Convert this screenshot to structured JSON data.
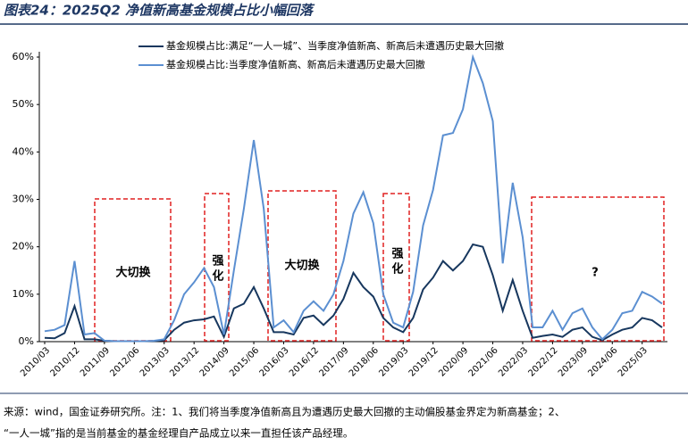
{
  "chart_data": {
    "type": "line",
    "title": "图表24：2025Q2 净值新高基金规模占比小幅回落",
    "categories": [
      "2010/03",
      null,
      null,
      "2010/12",
      null,
      null,
      "2011/09",
      null,
      null,
      "2012/06",
      null,
      null,
      "2013/03",
      null,
      null,
      "2013/12",
      null,
      null,
      "2014/09",
      null,
      null,
      "2015/06",
      null,
      null,
      "2016/03",
      null,
      null,
      "2016/12",
      null,
      null,
      "2017/09",
      null,
      null,
      "2018/06",
      null,
      null,
      "2019/03",
      null,
      null,
      "2019/12",
      null,
      null,
      "2020/09",
      null,
      null,
      "2021/06",
      null,
      null,
      "2022/03",
      null,
      null,
      "2022/12",
      null,
      null,
      "2023/09",
      null,
      null,
      "2024/06",
      null,
      null,
      "2025/03",
      null,
      null
    ],
    "series": [
      {
        "name": "基金规模占比:满足“一人一城”、当季度净值新高、新高后未遭遇历史最大回撤",
        "color": "#17375e",
        "values": [
          0.8,
          0.7,
          1.8,
          7.5,
          0.5,
          0.5,
          0.2,
          0.1,
          0.1,
          0.1,
          0.1,
          0.1,
          0.3,
          2.5,
          4,
          4.5,
          4.7,
          5.3,
          1,
          7,
          8,
          11.5,
          7,
          2,
          2,
          1.5,
          5,
          5.5,
          3.5,
          5.5,
          9,
          14.5,
          11.5,
          9.5,
          5,
          3,
          2,
          5,
          11,
          13.5,
          17,
          15,
          17,
          20.5,
          20,
          14,
          6.5,
          13,
          6.5,
          0.8,
          1.2,
          1.5,
          1,
          2.5,
          3,
          1,
          0.3,
          1.5,
          2.5,
          3,
          5,
          4.5,
          3
        ]
      },
      {
        "name": "基金规模占比:当季度净值新高、新高后未遭遇历史最大回撤",
        "color": "#5b8fd1",
        "values": [
          2.2,
          2.5,
          3.5,
          17,
          1.5,
          1.8,
          0.2,
          0.1,
          0.1,
          0.1,
          0.1,
          0.2,
          0.5,
          4.5,
          10,
          12.5,
          15.5,
          11.5,
          1.5,
          15,
          28,
          42.5,
          28,
          3,
          4.5,
          2,
          6.5,
          8.5,
          6.5,
          10,
          17,
          27,
          31.5,
          25,
          10,
          4,
          3,
          10.5,
          24.5,
          32,
          43.5,
          44,
          49,
          60,
          54.5,
          46.5,
          16.5,
          33.5,
          22,
          3,
          3,
          6.5,
          2.5,
          6,
          7,
          3,
          0.5,
          2.5,
          6,
          6.5,
          10.5,
          9.5,
          8
        ]
      }
    ],
    "ylim": [
      0,
      60
    ],
    "yticks": [
      {
        "value": 0,
        "label": "0%"
      },
      {
        "value": 10,
        "label": "10%"
      },
      {
        "value": 20,
        "label": "20%"
      },
      {
        "value": 30,
        "label": "30%"
      },
      {
        "value": 40,
        "label": "40%"
      },
      {
        "value": 50,
        "label": "50%"
      },
      {
        "value": 60,
        "label": "60%"
      }
    ],
    "annotations": [
      "大切换",
      "强化",
      "大切换",
      "强化",
      "?"
    ],
    "source": [
      "来源：wind，国金证券研究所。注：1、我们将当季度净值新高且为遭遇历史最大回撤的主动偏股基金界定为新高基金；2、",
      "“一人一城”指的是当前基金的基金经理自产品成立以来一直担任该产品经理。"
    ]
  }
}
